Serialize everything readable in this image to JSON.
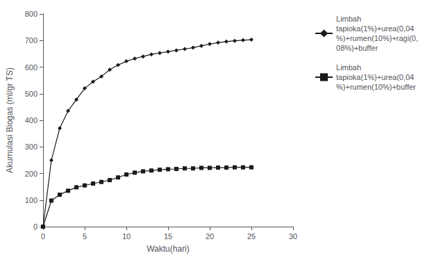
{
  "chart_data": {
    "type": "line",
    "xlabel": "Waktu(hari)",
    "ylabel": "Akumulasi Biogas (ml/gr TS)",
    "x": [
      0,
      1,
      2,
      3,
      4,
      5,
      6,
      7,
      8,
      9,
      10,
      11,
      12,
      13,
      14,
      15,
      16,
      17,
      18,
      19,
      20,
      21,
      22,
      23,
      24,
      25
    ],
    "series": [
      {
        "name": "Limbah\ntapioka(1%)+urea(0,04\n%)+rumen(10%)+ragi(0,\n08%)+buffer",
        "color": "#1a1a1a",
        "marker": "diamond",
        "values": [
          0,
          250,
          370,
          435,
          478,
          520,
          545,
          565,
          590,
          608,
          622,
          632,
          640,
          648,
          653,
          658,
          663,
          668,
          673,
          680,
          687,
          692,
          696,
          699,
          701,
          703
        ]
      },
      {
        "name": "Limbah\ntapioka(1%)+urea(0,04\n%)+rumen(10%)+buffer",
        "color": "#1a1a1a",
        "marker": "square",
        "values": [
          0,
          98,
          120,
          135,
          148,
          155,
          162,
          168,
          175,
          185,
          196,
          203,
          208,
          211,
          214,
          216,
          217,
          219,
          219,
          221,
          221,
          222,
          222,
          223,
          223,
          223
        ]
      }
    ],
    "xlim": [
      0,
      30
    ],
    "ylim": [
      0,
      800
    ],
    "xticks": [
      0,
      5,
      10,
      15,
      20,
      25,
      30
    ],
    "yticks": [
      0,
      100,
      200,
      300,
      400,
      500,
      600,
      700,
      800
    ],
    "grid": false,
    "legend": "upper right"
  }
}
